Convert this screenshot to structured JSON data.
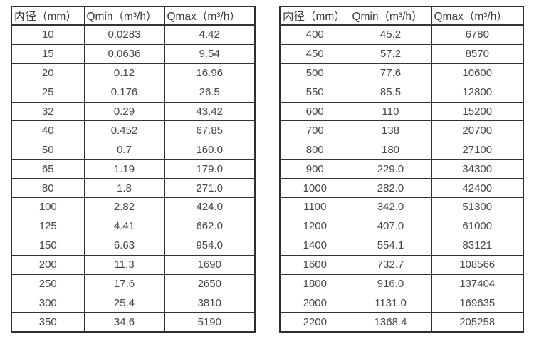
{
  "colors": {
    "background": "#ffffff",
    "border": "#333333",
    "text": "#424242"
  },
  "tables": [
    {
      "name": "flow-table-left",
      "headers": [
        "内径（mm）",
        "Qmin（m³/h）",
        "Qmax（m³/h）"
      ],
      "rows": [
        [
          "10",
          "0.0283",
          "4.42"
        ],
        [
          "15",
          "0.0636",
          "9.54"
        ],
        [
          "20",
          "0.12",
          "16.96"
        ],
        [
          "25",
          "0.176",
          "26.5"
        ],
        [
          "32",
          "0.29",
          "43.42"
        ],
        [
          "40",
          "0.452",
          "67.85"
        ],
        [
          "50",
          "0.7",
          "160.0"
        ],
        [
          "65",
          "1.19",
          "179.0"
        ],
        [
          "80",
          "1.8",
          "271.0"
        ],
        [
          "100",
          "2.82",
          "424.0"
        ],
        [
          "125",
          "4.41",
          "662.0"
        ],
        [
          "150",
          "6.63",
          "954.0"
        ],
        [
          "200",
          "11.3",
          "1690"
        ],
        [
          "250",
          "17.6",
          "2650"
        ],
        [
          "300",
          "25.4",
          "3810"
        ],
        [
          "350",
          "34.6",
          "5190"
        ]
      ]
    },
    {
      "name": "flow-table-right",
      "headers": [
        "内径（mm）",
        "Qmin（m³/h）",
        "Qmax（m³/h）"
      ],
      "rows": [
        [
          "400",
          "45.2",
          "6780"
        ],
        [
          "450",
          "57.2",
          "8570"
        ],
        [
          "500",
          "77.6",
          "10600"
        ],
        [
          "550",
          "85.5",
          "12800"
        ],
        [
          "600",
          "110",
          "15200"
        ],
        [
          "700",
          "138",
          "20700"
        ],
        [
          "800",
          "180",
          "27100"
        ],
        [
          "900",
          "229.0",
          "34300"
        ],
        [
          "1000",
          "282.0",
          "42400"
        ],
        [
          "1100",
          "342.0",
          "51300"
        ],
        [
          "1200",
          "407.0",
          "61000"
        ],
        [
          "1400",
          "554.1",
          "83121"
        ],
        [
          "1600",
          "732.7",
          "108566"
        ],
        [
          "1800",
          "916.0",
          "137404"
        ],
        [
          "2000",
          "1131.0",
          "169635"
        ],
        [
          "2200",
          "1368.4",
          "205258"
        ]
      ]
    }
  ]
}
